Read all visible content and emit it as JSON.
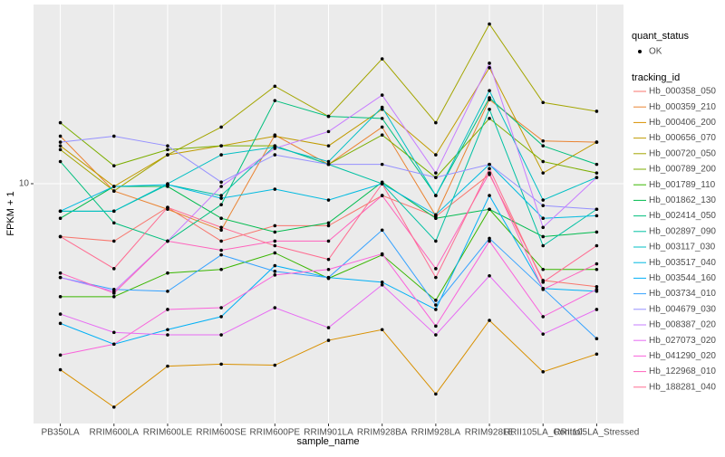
{
  "chart_data": {
    "type": "line",
    "x_label": "sample_name",
    "y_label": "FPKM + 1",
    "shape_legend": {
      "title": "quant_status",
      "labels": [
        "OK"
      ]
    },
    "legend_title": "tracking_id",
    "log_y": true,
    "grid": true,
    "categories": [
      "PB350LA",
      "RRIM600LA",
      "RRIM600LE",
      "RRIM600SE",
      "RRIM600PE",
      "RRIM901LA",
      "RRIM928BA",
      "RRIM928LA",
      "RRIM928LE",
      "RRII105LA_Control",
      "RRII105LA_Stressed"
    ],
    "ylim": [
      2.2,
      31
    ],
    "yticks": [
      10
    ],
    "series": [
      {
        "name": "Hb_000358_050",
        "color": "#F8766D",
        "values": [
          7.16,
          6.96,
          8.61,
          6.96,
          7.67,
          7.67,
          9.28,
          8.13,
          10.6,
          5.43,
          5.22
        ]
      },
      {
        "name": "Hb_000359_210",
        "color": "#EA8331",
        "values": [
          13.5,
          9.55,
          8.51,
          7.46,
          13.6,
          11.3,
          14.3,
          8.17,
          17.0,
          13.1,
          13.0
        ]
      },
      {
        "name": "Hb_000406_200",
        "color": "#D89000",
        "values": [
          3.09,
          2.44,
          3.16,
          3.2,
          3.18,
          3.72,
          3.98,
          2.65,
          4.22,
          3.05,
          3.41
        ]
      },
      {
        "name": "Hb_000656_070",
        "color": "#C09B00",
        "values": [
          12.7,
          9.83,
          12.0,
          12.7,
          13.5,
          12.7,
          16.0,
          12.0,
          20.8,
          10.7,
          13.0
        ]
      },
      {
        "name": "Hb_000720_050",
        "color": "#A3A500",
        "values": [
          12.4,
          9.55,
          12.0,
          14.3,
          18.5,
          15.3,
          22.0,
          14.7,
          27.4,
          16.7,
          15.8
        ]
      },
      {
        "name": "Hb_000789_200",
        "color": "#7CAE00",
        "values": [
          14.7,
          11.2,
          12.4,
          12.7,
          12.7,
          11.3,
          13.6,
          10.4,
          15.1,
          11.5,
          10.7
        ]
      },
      {
        "name": "Hb_001789_110",
        "color": "#39B600",
        "values": [
          4.9,
          4.9,
          5.69,
          5.82,
          6.46,
          5.5,
          6.38,
          4.79,
          8.51,
          5.82,
          5.82
        ]
      },
      {
        "name": "Hb_001862_130",
        "color": "#00BB4E",
        "values": [
          8.04,
          9.83,
          9.83,
          8.04,
          7.37,
          7.81,
          10.1,
          8.04,
          8.51,
          7.16,
          7.37
        ]
      },
      {
        "name": "Hb_002414_050",
        "color": "#00BF7D",
        "values": [
          11.5,
          7.81,
          6.96,
          8.76,
          16.9,
          15.3,
          15.1,
          9.28,
          17.2,
          12.7,
          11.3
        ]
      },
      {
        "name": "Hb_002897_090",
        "color": "#00C1A3",
        "values": [
          8.41,
          8.41,
          9.94,
          9.28,
          12.7,
          11.3,
          10.0,
          6.96,
          16.0,
          6.76,
          8.51
        ]
      },
      {
        "name": "Hb_003117_030",
        "color": "#00BFC4",
        "values": [
          8.41,
          8.41,
          10.0,
          12.0,
          12.6,
          11.5,
          16.2,
          9.28,
          18.0,
          9.02,
          10.4
        ]
      },
      {
        "name": "Hb_003517_040",
        "color": "#00BAE0",
        "values": [
          8.41,
          9.83,
          9.94,
          9.12,
          9.66,
          9.02,
          10.0,
          8.22,
          11.3,
          8.04,
          8.17
        ]
      },
      {
        "name": "Hb_003544_160",
        "color": "#00B0F6",
        "values": [
          4.14,
          3.63,
          3.98,
          4.32,
          5.96,
          5.53,
          5.37,
          4.52,
          9.28,
          5.16,
          5.07
        ]
      },
      {
        "name": "Hb_003734_010",
        "color": "#35A2FF",
        "values": [
          5.53,
          5.13,
          5.07,
          6.38,
          5.75,
          5.53,
          7.46,
          4.65,
          7.08,
          5.16,
          3.76
        ]
      },
      {
        "name": "Hb_004679_030",
        "color": "#9590FF",
        "values": [
          13.0,
          13.5,
          12.7,
          10.1,
          12.0,
          11.3,
          11.3,
          10.4,
          11.3,
          8.71,
          8.51
        ]
      },
      {
        "name": "Hb_008387_020",
        "color": "#C77CFF",
        "values": [
          5.53,
          5.07,
          6.96,
          9.83,
          12.5,
          13.9,
          17.5,
          10.7,
          21.4,
          7.59,
          10.4
        ]
      },
      {
        "name": "Hb_027073_020",
        "color": "#E76BF3",
        "values": [
          4.39,
          3.91,
          3.85,
          3.85,
          4.57,
          4.03,
          5.28,
          3.85,
          5.59,
          3.87,
          4.52
        ]
      },
      {
        "name": "Hb_041290_020",
        "color": "#FA62DB",
        "values": [
          3.39,
          3.63,
          4.52,
          4.57,
          5.62,
          5.82,
          6.42,
          4.07,
          6.96,
          4.32,
          5.13
        ]
      },
      {
        "name": "Hb_122968_010",
        "color": "#FF62BC",
        "values": [
          5.69,
          5.01,
          6.96,
          6.57,
          6.96,
          6.96,
          9.28,
          5.85,
          10.7,
          5.13,
          6.03
        ]
      },
      {
        "name": "Hb_188281_040",
        "color": "#FF6C91",
        "values": [
          7.16,
          5.85,
          8.61,
          7.59,
          6.76,
          6.2,
          10.0,
          5.53,
          11.0,
          5.37,
          6.76
        ]
      }
    ]
  }
}
